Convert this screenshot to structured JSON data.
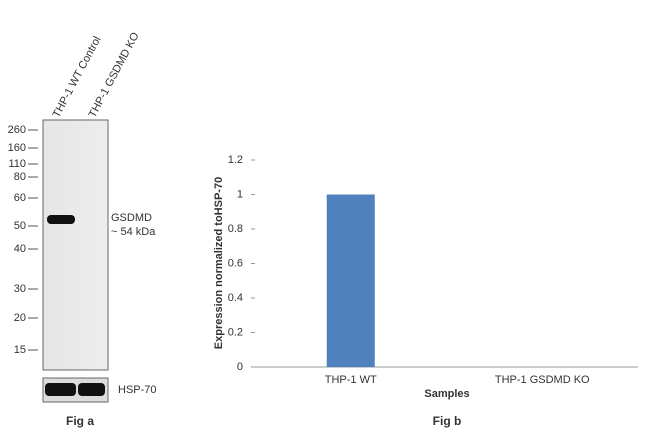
{
  "blot": {
    "lanes": [
      "THP-1 WT Control",
      "THP-1 GSDMD KO"
    ],
    "markers": [
      260,
      160,
      110,
      80,
      60,
      50,
      40,
      30,
      20,
      15
    ],
    "band_label": "GSDMD",
    "band_size": "~ 54 kDa",
    "loading_control": "HSP-70",
    "caption": "Fig a"
  },
  "chart_data": {
    "type": "bar",
    "caption": "Fig b",
    "x_label": "Samples",
    "y_label": "Expression  normalized toHSP-70",
    "categories": [
      "THP-1 WT",
      "THP-1 GSDMD KO"
    ],
    "values": [
      1,
      0
    ],
    "color": "#4f81bd",
    "ylim": [
      0,
      1.2
    ],
    "yticks": [
      0,
      0.2,
      0.4,
      0.6,
      0.8,
      1,
      1.2
    ]
  }
}
